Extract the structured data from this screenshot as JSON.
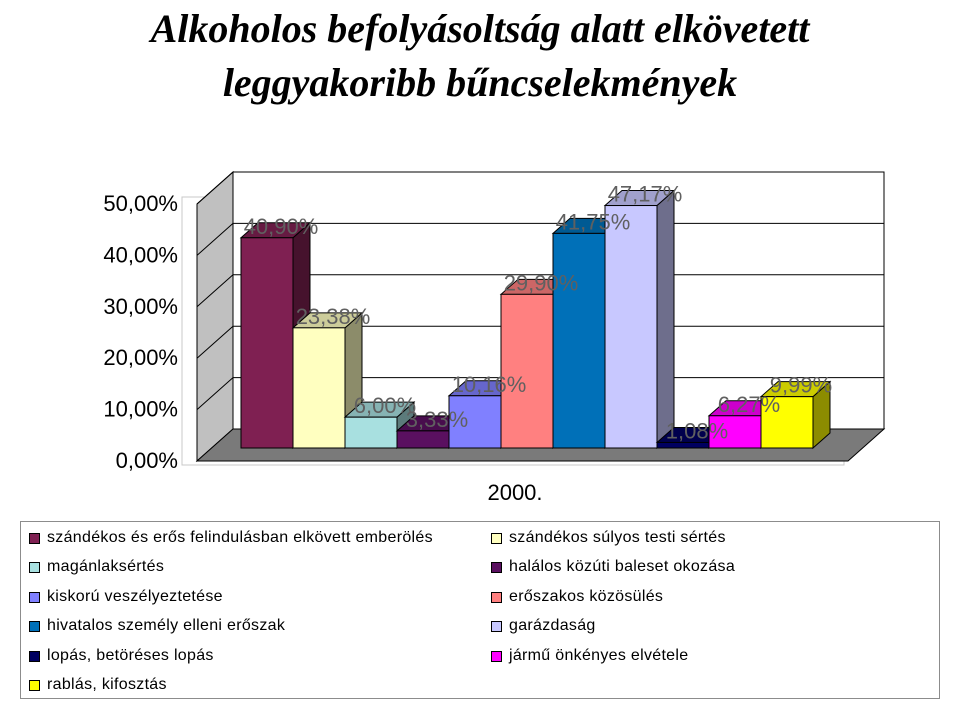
{
  "title_lines": [
    "Alkoholos befolyásoltság alatt elkövetett",
    "leggyakoribb bűncselekmények"
  ],
  "chart_data": {
    "type": "bar",
    "title": "Alkoholos befolyásoltság alatt elkövetett leggyakoribb bűncselekmények",
    "category_label": "2000.",
    "ylim": [
      0,
      50
    ],
    "yticks": [
      "0,00%",
      "10,00%",
      "20,00%",
      "30,00%",
      "40,00%",
      "50,00%"
    ],
    "grid": true,
    "legend_position": "bottom",
    "series": [
      {
        "name": "szándékos és erős felindulásban elkövett emberölés",
        "value": 40.9,
        "label": "40,90%",
        "color": "#7f2052"
      },
      {
        "name": "szándékos súlyos testi sértés",
        "value": 23.38,
        "label": "23,38%",
        "color": "#ffffc0"
      },
      {
        "name": "magánlaksértés",
        "value": 6.0,
        "label": "6,00%",
        "color": "#a8e0e0"
      },
      {
        "name": "halálos közúti baleset okozása",
        "value": 3.33,
        "label": "3,33%",
        "color": "#5a1060"
      },
      {
        "name": "kiskorú veszélyeztetése",
        "value": 10.16,
        "label": "10,16%",
        "color": "#8080ff"
      },
      {
        "name": "erőszakos közösülés",
        "value": 29.9,
        "label": "29,90%",
        "color": "#ff8080"
      },
      {
        "name": "hivatalos személy elleni erőszak",
        "value": 41.75,
        "label": "41,75%",
        "color": "#0070b8"
      },
      {
        "name": "garázdaság",
        "value": 47.17,
        "label": "47,17%",
        "color": "#c8c8ff"
      },
      {
        "name": "lopás, betöréses lopás",
        "value": 1.08,
        "label": "1,08%",
        "color": "#000060"
      },
      {
        "name": "jármű önkényes elvétele",
        "value": 6.27,
        "label": "6,27%",
        "color": "#ff00ff"
      },
      {
        "name": "rablás, kifosztás",
        "value": 9.99,
        "label": "9,99%",
        "color": "#ffff00"
      }
    ]
  }
}
